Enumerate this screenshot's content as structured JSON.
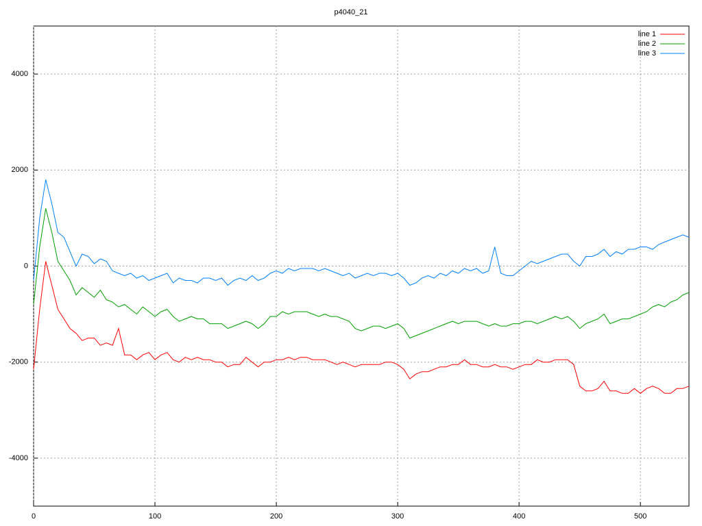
{
  "chart_data": {
    "type": "line",
    "title": "p4040_21",
    "x": [
      0,
      5,
      10,
      15,
      20,
      25,
      30,
      35,
      40,
      45,
      50,
      55,
      60,
      65,
      70,
      75,
      80,
      85,
      90,
      95,
      100,
      105,
      110,
      115,
      120,
      125,
      130,
      135,
      140,
      145,
      150,
      155,
      160,
      165,
      170,
      175,
      180,
      185,
      190,
      195,
      200,
      205,
      210,
      215,
      220,
      225,
      230,
      235,
      240,
      245,
      250,
      255,
      260,
      265,
      270,
      275,
      280,
      285,
      290,
      295,
      300,
      305,
      310,
      315,
      320,
      325,
      330,
      335,
      340,
      345,
      350,
      355,
      360,
      365,
      370,
      375,
      380,
      385,
      390,
      395,
      400,
      405,
      410,
      415,
      420,
      425,
      430,
      435,
      440,
      445,
      450,
      455,
      460,
      465,
      470,
      475,
      480,
      485,
      490,
      495,
      500,
      505,
      510,
      515,
      520,
      525,
      530,
      535,
      540
    ],
    "series": [
      {
        "name": "line 1",
        "color": "#ff0000",
        "values": [
          -2150,
          -900,
          100,
          -400,
          -900,
          -1100,
          -1300,
          -1400,
          -1550,
          -1500,
          -1500,
          -1650,
          -1600,
          -1650,
          -1300,
          -1850,
          -1850,
          -1950,
          -1850,
          -1800,
          -1950,
          -1850,
          -1800,
          -1950,
          -2000,
          -1900,
          -1950,
          -1900,
          -1950,
          -1950,
          -2000,
          -2000,
          -2100,
          -2050,
          -2050,
          -1900,
          -2000,
          -2100,
          -2000,
          -2000,
          -1950,
          -1950,
          -1900,
          -1950,
          -1900,
          -1900,
          -1950,
          -1950,
          -1950,
          -2000,
          -2050,
          -2000,
          -2050,
          -2100,
          -2050,
          -2050,
          -2050,
          -2050,
          -2000,
          -2000,
          -2050,
          -2150,
          -2350,
          -2250,
          -2200,
          -2200,
          -2150,
          -2100,
          -2100,
          -2050,
          -2050,
          -1950,
          -2050,
          -2050,
          -2100,
          -2100,
          -2050,
          -2100,
          -2100,
          -2150,
          -2100,
          -2050,
          -2050,
          -1950,
          -2000,
          -2000,
          -1950,
          -1950,
          -1950,
          -2050,
          -2500,
          -2600,
          -2600,
          -2550,
          -2400,
          -2600,
          -2600,
          -2650,
          -2650,
          -2550,
          -2650,
          -2550,
          -2500,
          -2550,
          -2650,
          -2650,
          -2550,
          -2550,
          -2500
        ]
      },
      {
        "name": "line 2",
        "color": "#00a000",
        "values": [
          -800,
          400,
          1200,
          700,
          100,
          -100,
          -300,
          -600,
          -450,
          -550,
          -650,
          -500,
          -700,
          -750,
          -850,
          -800,
          -900,
          -1000,
          -850,
          -950,
          -1050,
          -950,
          -900,
          -1050,
          -1150,
          -1100,
          -1050,
          -1100,
          -1100,
          -1200,
          -1200,
          -1200,
          -1300,
          -1250,
          -1200,
          -1150,
          -1200,
          -1300,
          -1200,
          -1050,
          -1050,
          -950,
          -1000,
          -950,
          -950,
          -950,
          -1000,
          -1050,
          -1000,
          -1050,
          -1050,
          -1100,
          -1150,
          -1300,
          -1350,
          -1300,
          -1250,
          -1250,
          -1300,
          -1250,
          -1200,
          -1300,
          -1500,
          -1450,
          -1400,
          -1350,
          -1300,
          -1250,
          -1200,
          -1150,
          -1200,
          -1150,
          -1150,
          -1150,
          -1200,
          -1250,
          -1200,
          -1250,
          -1250,
          -1200,
          -1200,
          -1150,
          -1150,
          -1200,
          -1150,
          -1100,
          -1050,
          -1100,
          -1050,
          -1150,
          -1300,
          -1200,
          -1150,
          -1100,
          -1000,
          -1200,
          -1150,
          -1100,
          -1100,
          -1050,
          -1000,
          -950,
          -850,
          -800,
          -850,
          -750,
          -700,
          -600,
          -550
        ]
      },
      {
        "name": "line 3",
        "color": "#0080ff",
        "values": [
          -300,
          1000,
          1800,
          1300,
          700,
          600,
          300,
          0,
          250,
          200,
          50,
          150,
          100,
          -100,
          -150,
          -200,
          -150,
          -250,
          -200,
          -300,
          -250,
          -200,
          -150,
          -350,
          -250,
          -300,
          -300,
          -350,
          -250,
          -250,
          -300,
          -250,
          -400,
          -300,
          -250,
          -300,
          -200,
          -300,
          -250,
          -150,
          -100,
          -150,
          -50,
          -100,
          -50,
          -50,
          -50,
          -100,
          -50,
          -100,
          -150,
          -200,
          -150,
          -250,
          -200,
          -150,
          -200,
          -150,
          -150,
          -200,
          -150,
          -250,
          -400,
          -350,
          -250,
          -200,
          -250,
          -150,
          -200,
          -100,
          -150,
          -50,
          -100,
          -50,
          -150,
          -100,
          400,
          -150,
          -200,
          -200,
          -100,
          0,
          100,
          50,
          100,
          150,
          200,
          250,
          250,
          100,
          0,
          200,
          200,
          250,
          350,
          200,
          300,
          250,
          350,
          350,
          400,
          400,
          350,
          450,
          500,
          550,
          600,
          650,
          600
        ]
      }
    ],
    "xlim": [
      0,
      540
    ],
    "xticks": [
      0,
      100,
      200,
      300,
      400,
      500
    ],
    "ylim": [
      -5000,
      5000
    ],
    "yticks": [
      -4000,
      -2000,
      0,
      2000,
      4000
    ],
    "grid": true,
    "legend": "top-right"
  }
}
